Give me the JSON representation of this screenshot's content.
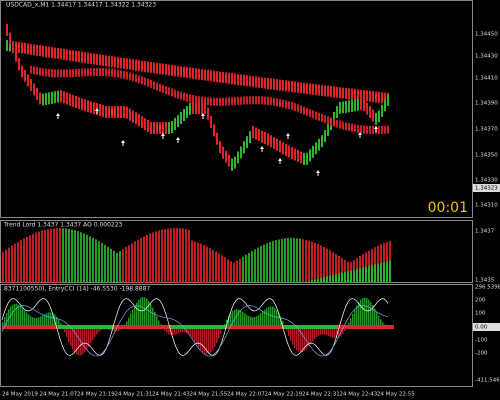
{
  "header": {
    "symbol_info": "USDCAD_x,M1  1.34417 1.34417 1.34322 1.34323"
  },
  "price_axis": {
    "labels": [
      "1.34450",
      "1.34430",
      "1.34410",
      "1.34390",
      "1.34370",
      "1.34350",
      "1.34330",
      "1.34310"
    ],
    "current": "1.34323"
  },
  "timer": "00:01",
  "pane2": {
    "header": "Trend Lord 1.3437 1.3437  AO 0.000223",
    "top_label": "1.3437",
    "bottom_label": "1.3435"
  },
  "pane3": {
    "header": "8371100550), EntryCCI (14) -46.5530 -198.8887",
    "labels": [
      "296.5398",
      "200",
      "100",
      "0.00",
      "-100",
      "-200",
      "-411.5469"
    ]
  },
  "time_axis": {
    "labels": [
      "24 May 2019",
      "24 May 21:07",
      "24 May 21:19",
      "24 May 21:31",
      "24 May 21:43",
      "24 May 21:55",
      "24 May 22:07",
      "24 May 22:19",
      "24 May 22:31",
      "24 May 22:43",
      "24 May 22:55"
    ]
  }
}
